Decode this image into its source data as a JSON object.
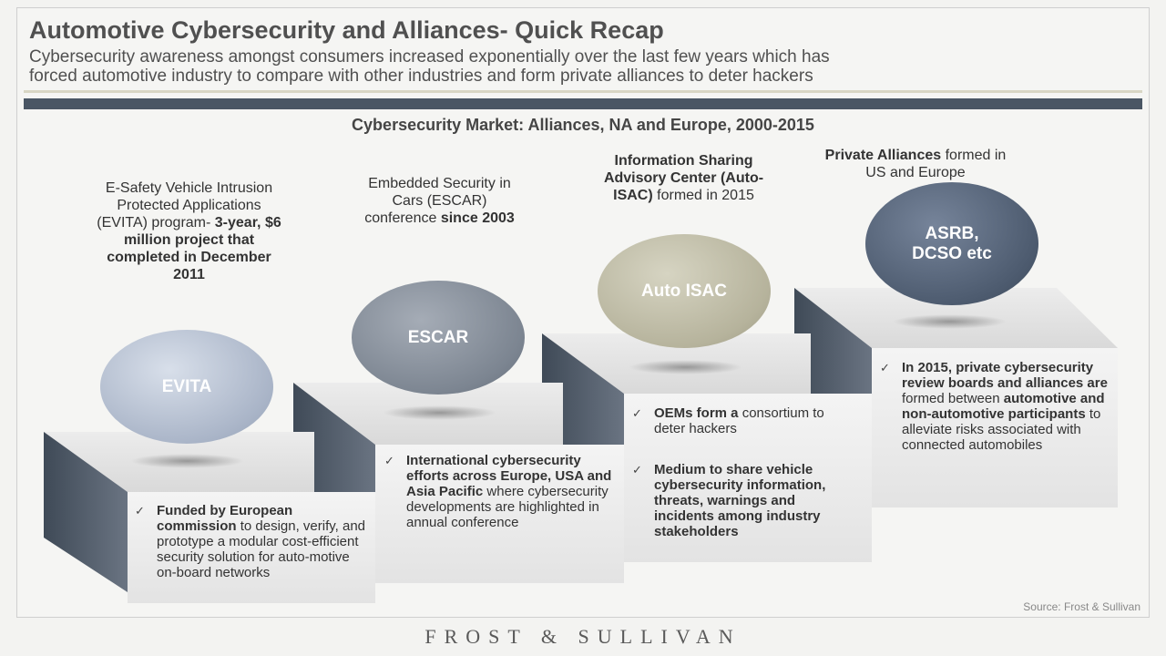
{
  "slide": {
    "title": "Automotive Cybersecurity and Alliances- Quick Recap",
    "subtitle_line1": "Cybersecurity awareness amongst consumers increased exponentially over the last few years which has",
    "subtitle_line2": "forced automotive industry to compare with other industries and form private alliances to deter hackers",
    "section_title": "Cybersecurity Market: Alliances, NA and Europe, 2000-2015"
  },
  "steps": [
    {
      "ball_label": "EVITA",
      "ball_color": "#b7c1d2",
      "desc_normal": "E-Safety Vehicle Intrusion Protected Applications (EVITA) program-",
      "desc_bold": "3-year, $6 million project that completed in December 2011",
      "bullet_bold": "Funded by European commission",
      "bullet_normal": "to design, verify, and prototype a modular cost-efficient security solution for auto-motive on-board networks"
    },
    {
      "ball_label": "ESCAR",
      "ball_color": "#808894",
      "desc_normal": "Embedded Security in Cars (ESCAR) conference",
      "desc_bold": "since 2003",
      "bullet_bold": "International cybersecurity efforts across Europe, USA and Asia Pacific",
      "bullet_normal": "where cybersecurity developments are highlighted in annual conference"
    },
    {
      "ball_label": "Auto ISAC",
      "ball_color": "#b9b69f",
      "desc_normal": "Information Sharing Advisory Center (Auto-ISAC)",
      "desc_bold": "formed in 2015",
      "bullets": [
        {
          "bold": "OEMs form a",
          "normal": "consortium to deter hackers"
        },
        {
          "bold": "Medium to share vehicle cybersecurity information, threats, warnings and incidents among industry stakeholders",
          "normal": ""
        }
      ]
    },
    {
      "ball_label": "ASRB, DCSO etc",
      "ball_color": "#4e5c70",
      "desc_bold": "Private Alliances",
      "desc_normal": "formed in US and Europe",
      "bullet_bold": "In 2015, private cybersecurity review boards and alliances are",
      "bullet_mid": "formed between",
      "bullet_bold2": "automotive and non-automotive participants",
      "bullet_normal": "to alleviate risks associated with connected automobiles"
    }
  ],
  "footer": {
    "source": "Source: Frost & Sullivan",
    "brand": "FROST & SULLIVAN"
  }
}
